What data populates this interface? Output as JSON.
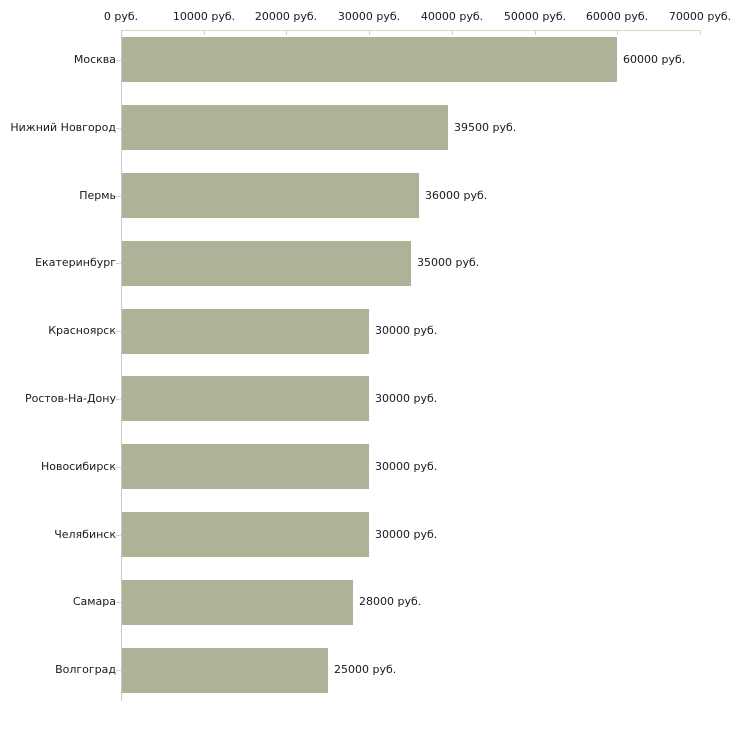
{
  "chart_data": {
    "type": "bar",
    "orientation": "horizontal",
    "title": "",
    "xlabel": "",
    "ylabel": "",
    "unit": "руб.",
    "xlim": [
      0,
      70000
    ],
    "grid": "off",
    "legend": "none",
    "categories": [
      "Москва",
      "Нижний Новгород",
      "Пермь",
      "Екатеринбург",
      "Красноярск",
      "Ростов-На-Дону",
      "Новосибирск",
      "Челябинск",
      "Самара",
      "Волгоград"
    ],
    "values": [
      60000,
      39500,
      36000,
      35000,
      30000,
      30000,
      30000,
      30000,
      28000,
      25000
    ],
    "value_labels": [
      "60000 руб.",
      "39500 руб.",
      "36000 руб.",
      "35000 руб.",
      "30000 руб.",
      "30000 руб.",
      "30000 руб.",
      "30000 руб.",
      "28000 руб.",
      "25000 руб."
    ],
    "x_ticks": [
      0,
      10000,
      20000,
      30000,
      40000,
      50000,
      60000,
      70000
    ],
    "x_tick_labels": [
      "0 руб.",
      "10000 руб.",
      "20000 руб.",
      "30000 руб.",
      "40000 руб.",
      "50000 руб.",
      "60000 руб.",
      "70000 руб."
    ],
    "colors": {
      "bar": "#aeb297",
      "axis_tick": "#d8d8b8",
      "y_axis_line": "#c8c8c8",
      "text": "#1a1a1a",
      "background": "#ffffff"
    }
  }
}
